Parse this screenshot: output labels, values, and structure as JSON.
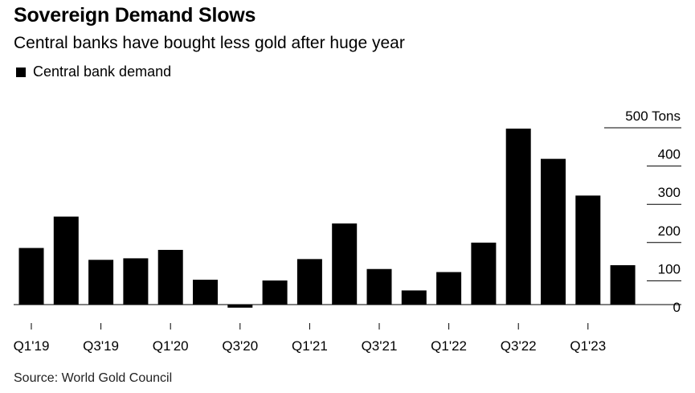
{
  "title": "Sovereign Demand Slows",
  "subtitle": "Central banks have bought less gold after huge year",
  "source": "Source: World Gold Council",
  "chart_data": {
    "type": "bar",
    "title": "Sovereign Demand Slows",
    "subtitle": "Central banks have bought less gold after huge year",
    "legend": [
      "Central bank demand"
    ],
    "legend_position": "top-left",
    "color": "#000000",
    "categories": [
      "Q1'19",
      "Q2'19",
      "Q3'19",
      "Q4'19",
      "Q1'20",
      "Q2'20",
      "Q3'20",
      "Q4'20",
      "Q1'21",
      "Q2'21",
      "Q3'21",
      "Q4'21",
      "Q1'22",
      "Q2'22",
      "Q3'22",
      "Q4'22",
      "Q1'23",
      "Q2'23"
    ],
    "x_tick_labels": [
      "Q1'19",
      "Q3'19",
      "Q1'20",
      "Q3'20",
      "Q1'21",
      "Q3'21",
      "Q1'22",
      "Q3'22",
      "Q1'23"
    ],
    "series": [
      {
        "name": "Central bank demand",
        "values": [
          148,
          230,
          117,
          121,
          143,
          65,
          -8,
          63,
          119,
          212,
          93,
          37,
          85,
          162,
          460,
          381,
          285,
          103
        ]
      }
    ],
    "ylim": [
      -10,
      500
    ],
    "y_ticks": [
      0,
      100,
      200,
      300,
      400,
      500
    ],
    "y_tick_labels": [
      "0",
      "100",
      "200",
      "300",
      "400",
      "500 Tons"
    ],
    "y_axis_position": "right",
    "grid": "horizontal, right segment only"
  }
}
